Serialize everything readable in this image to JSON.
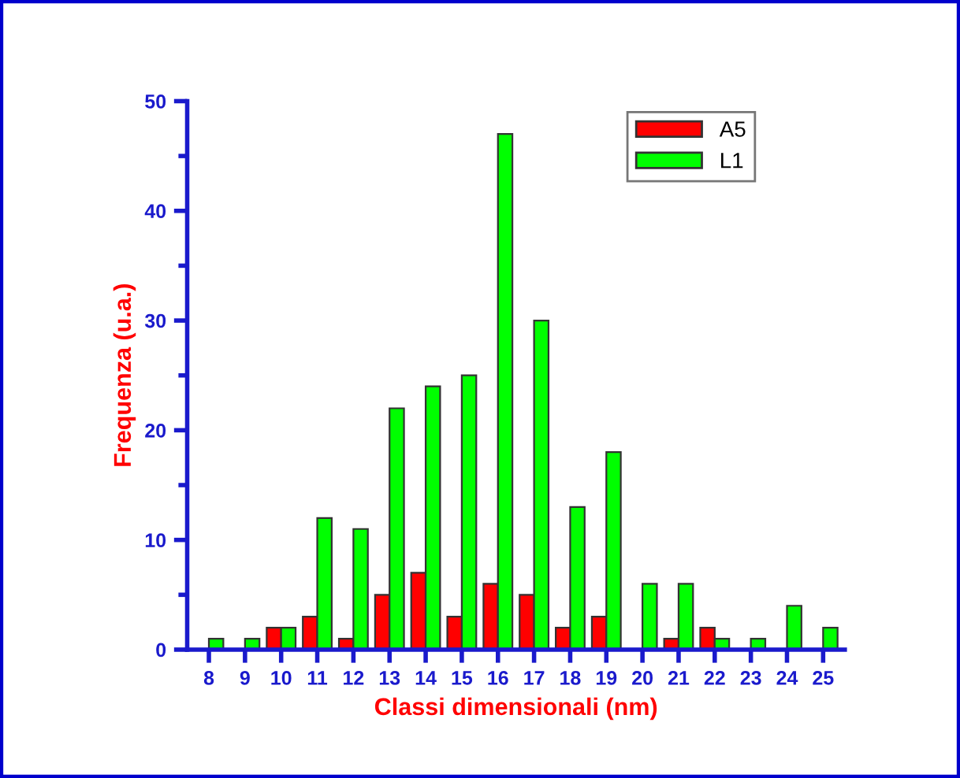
{
  "chart_data": {
    "type": "bar",
    "xlabel": "Classi dimensionali (nm)",
    "ylabel": "Frequenza (u.a.)",
    "categories": [
      "8",
      "9",
      "10",
      "11",
      "12",
      "13",
      "14",
      "15",
      "16",
      "17",
      "18",
      "19",
      "20",
      "21",
      "22",
      "23",
      "24",
      "25"
    ],
    "series": [
      {
        "name": "A5",
        "color": "#ff0000",
        "values": [
          0,
          0,
          2,
          3,
          1,
          5,
          7,
          3,
          6,
          5,
          2,
          3,
          0,
          1,
          2,
          0,
          0,
          0
        ]
      },
      {
        "name": "L1",
        "color": "#00ff00",
        "values": [
          1,
          1,
          2,
          12,
          11,
          22,
          24,
          25,
          47,
          30,
          13,
          18,
          6,
          6,
          1,
          1,
          4,
          2
        ]
      }
    ],
    "ylim": [
      0,
      50
    ],
    "yticks": [
      0,
      10,
      20,
      30,
      40,
      50
    ],
    "grid": false,
    "legend": "top right"
  }
}
